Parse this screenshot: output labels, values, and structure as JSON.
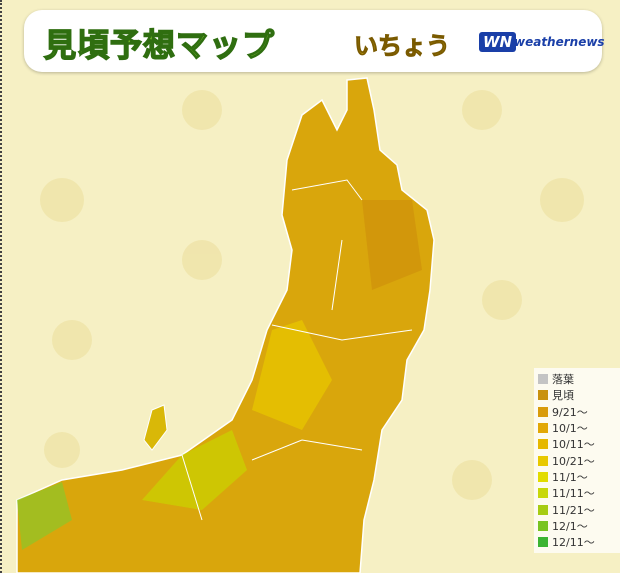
{
  "header": {
    "title": "見頃予想マップ",
    "subtitle": "いちょう",
    "logo_mark": "WN",
    "logo_text": "weathernews"
  },
  "legend": [
    {
      "label": "落葉",
      "color": "#c4c4c4"
    },
    {
      "label": "見頃",
      "color": "#c9920e"
    },
    {
      "label": "9/21～",
      "color": "#d99c0c"
    },
    {
      "label": "10/1～",
      "color": "#e2a806"
    },
    {
      "label": "10/11～",
      "color": "#e6b800"
    },
    {
      "label": "10/21～",
      "color": "#e8c900"
    },
    {
      "label": "11/1～",
      "color": "#e2dc00"
    },
    {
      "label": "11/11～",
      "color": "#c8d80a"
    },
    {
      "label": "11/21～",
      "color": "#a6cc14"
    },
    {
      "label": "12/1～",
      "color": "#78c422"
    },
    {
      "label": "12/11～",
      "color": "#3cb432"
    }
  ]
}
